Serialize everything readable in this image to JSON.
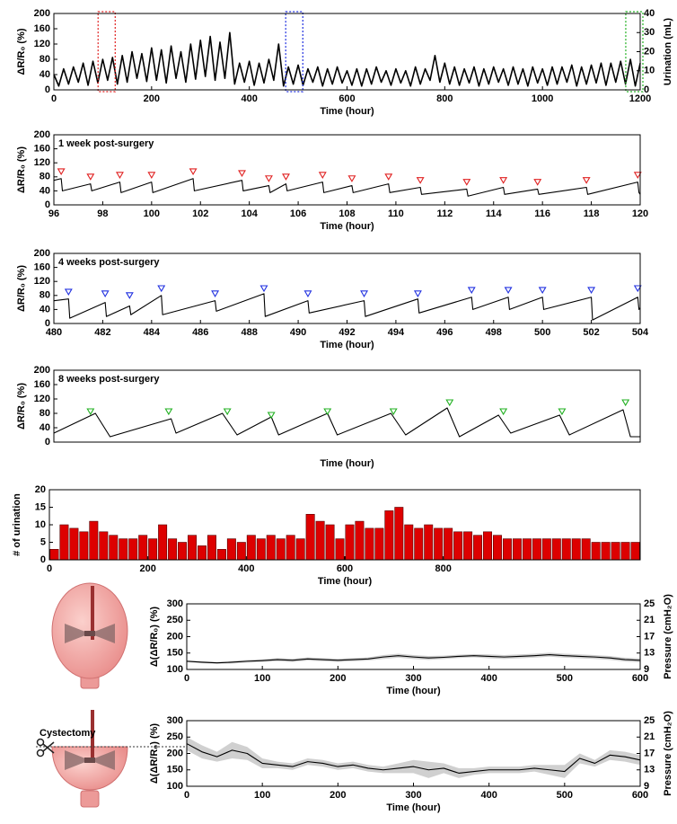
{
  "chart_data": [
    {
      "type": "line",
      "xlabel": "Time (hour)",
      "ylabel": "ΔR/R₀ (%)",
      "y2label": "Urination (mL)",
      "xlim": [
        0,
        1200
      ],
      "xticks": [
        0,
        200,
        400,
        600,
        800,
        1000,
        1200
      ],
      "ylim": [
        0,
        200
      ],
      "yticks": [
        0,
        40,
        80,
        120,
        160,
        200
      ],
      "y2lim": [
        0,
        40
      ],
      "y2ticks": [
        0,
        10,
        20,
        30,
        40
      ],
      "color": "#000000",
      "x": [
        0,
        10,
        20,
        30,
        40,
        50,
        60,
        70,
        80,
        90,
        100,
        110,
        120,
        130,
        140,
        150,
        160,
        170,
        180,
        190,
        200,
        210,
        220,
        230,
        240,
        250,
        260,
        270,
        280,
        290,
        300,
        310,
        320,
        330,
        340,
        350,
        360,
        370,
        380,
        390,
        400,
        410,
        420,
        430,
        440,
        450,
        460,
        470,
        480,
        490,
        500,
        510,
        520,
        530,
        540,
        550,
        560,
        570,
        580,
        590,
        600,
        610,
        620,
        630,
        640,
        650,
        660,
        670,
        680,
        690,
        700,
        710,
        720,
        730,
        740,
        750,
        760,
        770,
        780,
        790,
        800,
        810,
        820,
        830,
        840,
        850,
        860,
        870,
        880,
        890,
        900,
        910,
        920,
        930,
        940,
        950,
        960,
        970,
        980,
        990,
        1000,
        1010,
        1020,
        1030,
        1040,
        1050,
        1060,
        1070,
        1080,
        1090,
        1100,
        1110,
        1120,
        1130,
        1140,
        1150,
        1160,
        1170,
        1180,
        1190,
        1200
      ],
      "values": [
        40,
        10,
        55,
        15,
        60,
        20,
        70,
        12,
        75,
        18,
        80,
        25,
        85,
        15,
        90,
        20,
        100,
        30,
        95,
        22,
        110,
        25,
        105,
        18,
        115,
        30,
        100,
        20,
        120,
        28,
        130,
        35,
        140,
        25,
        125,
        30,
        150,
        15,
        70,
        20,
        75,
        12,
        70,
        18,
        80,
        25,
        120,
        10,
        60,
        15,
        65,
        12,
        55,
        20,
        60,
        10,
        55,
        15,
        60,
        18,
        50,
        12,
        55,
        10,
        55,
        15,
        60,
        20,
        50,
        12,
        55,
        18,
        50,
        10,
        60,
        15,
        55,
        25,
        90,
        20,
        70,
        15,
        60,
        12,
        55,
        18,
        60,
        10,
        55,
        15,
        60,
        20,
        55,
        12,
        60,
        15,
        55,
        10,
        60,
        18,
        55,
        12,
        60,
        15,
        60,
        20,
        65,
        10,
        60,
        15,
        65,
        18,
        70,
        12,
        70,
        20,
        75,
        15,
        80,
        10,
        70
      ],
      "highlights": [
        {
          "xlim": [
            96,
            120
          ],
          "color": "#e02020"
        },
        {
          "xlim": [
            480,
            504
          ],
          "color": "#2030e0"
        },
        {
          "xlim": [
            1176,
            1200
          ],
          "color": "#20b020"
        }
      ]
    },
    {
      "type": "line",
      "annotation": "1 week post-surgery",
      "xlabel": "Time (hour)",
      "ylabel": "ΔR/R₀ (%)",
      "xlim": [
        96,
        120
      ],
      "xticks": [
        96,
        98,
        100,
        102,
        104,
        106,
        108,
        110,
        112,
        114,
        116,
        118,
        120
      ],
      "ylim": [
        0,
        200
      ],
      "yticks": [
        0,
        40,
        80,
        120,
        160,
        200
      ],
      "color": "#000000",
      "x": [
        96,
        96.3,
        96.35,
        97.5,
        97.55,
        98.7,
        98.75,
        100,
        100.05,
        101.7,
        101.75,
        103.7,
        103.75,
        104.8,
        104.85,
        105.5,
        105.55,
        107,
        107.05,
        108.2,
        108.25,
        109.7,
        109.75,
        111,
        111.05,
        112.9,
        112.95,
        114.4,
        114.45,
        115.8,
        115.85,
        117.8,
        117.85,
        119.9,
        119.95,
        120
      ],
      "values": [
        70,
        75,
        40,
        60,
        40,
        65,
        35,
        65,
        35,
        75,
        40,
        70,
        40,
        55,
        35,
        60,
        40,
        65,
        35,
        55,
        35,
        60,
        35,
        50,
        30,
        45,
        25,
        50,
        30,
        45,
        30,
        50,
        30,
        65,
        35,
        30
      ],
      "events": {
        "color": "#e02020",
        "x": [
          96.3,
          97.5,
          98.7,
          100,
          101.7,
          103.7,
          104.8,
          105.5,
          107,
          108.2,
          109.7,
          111,
          112.9,
          114.4,
          115.8,
          117.8,
          119.9
        ],
        "values": [
          95,
          80,
          85,
          85,
          95,
          90,
          75,
          80,
          85,
          75,
          80,
          70,
          65,
          70,
          65,
          70,
          85
        ]
      }
    },
    {
      "type": "line",
      "annotation": "4 weeks post-surgery",
      "xlabel": "Time (hour)",
      "ylabel": "ΔR/R₀ (%)",
      "xlim": [
        480,
        504
      ],
      "xticks": [
        480,
        482,
        484,
        486,
        488,
        490,
        492,
        494,
        496,
        498,
        500,
        502,
        504
      ],
      "ylim": [
        0,
        200
      ],
      "yticks": [
        0,
        40,
        80,
        120,
        160,
        200
      ],
      "color": "#000000",
      "x": [
        480,
        480.6,
        480.65,
        482.1,
        482.15,
        483.1,
        483.15,
        484.4,
        484.45,
        486.6,
        486.65,
        488.6,
        488.65,
        490.4,
        490.45,
        492.7,
        492.75,
        494.9,
        494.95,
        497.1,
        497.15,
        498.6,
        498.65,
        500,
        500.05,
        502,
        502.05,
        503.9,
        503.95,
        504
      ],
      "values": [
        65,
        70,
        15,
        60,
        20,
        50,
        25,
        80,
        25,
        65,
        35,
        85,
        20,
        65,
        30,
        65,
        20,
        70,
        30,
        75,
        40,
        75,
        40,
        75,
        40,
        75,
        10,
        75,
        40,
        45
      ],
      "events": {
        "color": "#2030e0",
        "x": [
          480.6,
          482.1,
          483.1,
          484.4,
          486.6,
          488.6,
          490.4,
          492.7,
          494.9,
          497.1,
          498.6,
          500,
          502,
          503.9
        ],
        "values": [
          90,
          85,
          80,
          100,
          85,
          100,
          85,
          85,
          85,
          95,
          95,
          95,
          95,
          100
        ]
      }
    },
    {
      "type": "line",
      "annotation": "8 weeks post-surgery",
      "xlabel": "Time (hour)",
      "ylabel": "ΔR/R₀ (%)",
      "xlim": [
        1176,
        1200
      ],
      "ylim": [
        0,
        200
      ],
      "yticks": [
        0,
        40,
        80,
        120,
        160,
        200
      ],
      "color": "#000000",
      "x": [
        1176,
        1177.7,
        1178.3,
        1180.8,
        1181,
        1182.9,
        1183.5,
        1184.9,
        1185.2,
        1187.2,
        1187.6,
        1189.8,
        1190.4,
        1192.1,
        1192.6,
        1194.2,
        1194.7,
        1196.7,
        1197.1,
        1199.3,
        1199.6,
        1200
      ],
      "values": [
        25,
        80,
        15,
        65,
        25,
        80,
        20,
        70,
        20,
        80,
        20,
        80,
        20,
        95,
        15,
        75,
        25,
        75,
        20,
        90,
        15,
        15
      ],
      "events": {
        "color": "#20b020",
        "x": [
          1177.5,
          1180.7,
          1183.1,
          1184.9,
          1187.2,
          1189.9,
          1192.2,
          1194.4,
          1196.8,
          1199.4
        ],
        "values": [
          85,
          85,
          85,
          75,
          85,
          85,
          110,
          85,
          85,
          110
        ]
      }
    },
    {
      "type": "histogram",
      "xlabel": "Time (hour)",
      "ylabel": "# of urination",
      "xlim": [
        0,
        1200
      ],
      "xticks": [
        0,
        200,
        400,
        600,
        800
      ],
      "ylim": [
        0,
        20
      ],
      "yticks": [
        0,
        5,
        10,
        15,
        20
      ],
      "color": "#dd0000",
      "bins": [
        0,
        20,
        40,
        60,
        80,
        100,
        120,
        140,
        160,
        180,
        200,
        220,
        240,
        260,
        280,
        300,
        320,
        340,
        360,
        380,
        400,
        420,
        440,
        460,
        480,
        500,
        520,
        540,
        560,
        580,
        600,
        620,
        640,
        660,
        680,
        700,
        720,
        740,
        760,
        780,
        800,
        820,
        840,
        860,
        880,
        900,
        920,
        940,
        960,
        980,
        1000,
        1020,
        1040,
        1060,
        1080,
        1100,
        1120,
        1140,
        1160,
        1180,
        1200
      ],
      "values": [
        3,
        10,
        9,
        8,
        11,
        8,
        7,
        6,
        6,
        7,
        6,
        10,
        6,
        5,
        7,
        4,
        7,
        3,
        6,
        5,
        7,
        6,
        7,
        6,
        7,
        6,
        13,
        11,
        10,
        6,
        10,
        11,
        9,
        9,
        14,
        15,
        10,
        9,
        10,
        9,
        9,
        8,
        8,
        7,
        8,
        7,
        6,
        6,
        6,
        6,
        6,
        6,
        6,
        6,
        6,
        5,
        5,
        5,
        5,
        5
      ]
    },
    {
      "type": "band",
      "xlabel": "Time (hour)",
      "ylabel": "Δ(ΔR/R₀) (%)",
      "y2label": "Pressure (cmH₂O)",
      "xlim": [
        0,
        600
      ],
      "xticks": [
        0,
        100,
        200,
        300,
        400,
        500,
        600
      ],
      "ylim": [
        100,
        300
      ],
      "yticks": [
        100,
        150,
        200,
        250,
        300
      ],
      "y2lim": [
        9,
        25
      ],
      "y2ticks": [
        9,
        13,
        17,
        21,
        25
      ],
      "color": "#000000",
      "band_color": "#d0d0d0",
      "x": [
        0,
        20,
        40,
        60,
        80,
        100,
        120,
        140,
        160,
        180,
        200,
        220,
        240,
        260,
        280,
        300,
        320,
        340,
        360,
        380,
        400,
        420,
        440,
        460,
        480,
        500,
        520,
        540,
        560,
        580,
        600
      ],
      "values": [
        125,
        122,
        120,
        122,
        125,
        127,
        130,
        128,
        132,
        130,
        128,
        130,
        132,
        138,
        142,
        138,
        135,
        137,
        140,
        142,
        140,
        138,
        140,
        142,
        145,
        142,
        140,
        138,
        135,
        130,
        128
      ],
      "errors": [
        3,
        3,
        3,
        4,
        4,
        4,
        5,
        5,
        5,
        5,
        5,
        5,
        5,
        6,
        6,
        6,
        6,
        5,
        5,
        5,
        6,
        6,
        6,
        6,
        6,
        6,
        6,
        6,
        6,
        6,
        6
      ]
    },
    {
      "type": "band",
      "annotation": "Cystectomy",
      "xlabel": "Time (hour)",
      "ylabel": "Δ(ΔR/R₀) (%)",
      "y2label": "Pressure (cmH₂O)",
      "xlim": [
        0,
        600
      ],
      "xticks": [
        0,
        100,
        200,
        300,
        400,
        500,
        600
      ],
      "ylim": [
        100,
        300
      ],
      "yticks": [
        100,
        150,
        200,
        250,
        300
      ],
      "y2lim": [
        9,
        25
      ],
      "y2ticks": [
        9,
        13,
        17,
        21,
        25
      ],
      "color": "#000000",
      "band_color": "#d0d0d0",
      "x": [
        0,
        20,
        40,
        60,
        80,
        100,
        120,
        140,
        160,
        180,
        200,
        220,
        240,
        260,
        280,
        300,
        320,
        340,
        360,
        380,
        400,
        420,
        440,
        460,
        480,
        500,
        520,
        540,
        560,
        580,
        600
      ],
      "values": [
        230,
        205,
        190,
        210,
        200,
        170,
        165,
        160,
        175,
        170,
        160,
        165,
        155,
        150,
        155,
        160,
        150,
        155,
        140,
        145,
        150,
        150,
        150,
        155,
        150,
        145,
        185,
        170,
        195,
        190,
        180
      ],
      "errors": [
        20,
        20,
        15,
        25,
        20,
        15,
        10,
        10,
        10,
        10,
        10,
        10,
        10,
        10,
        15,
        20,
        25,
        15,
        15,
        10,
        10,
        10,
        10,
        10,
        15,
        20,
        15,
        10,
        15,
        15,
        15
      ]
    }
  ]
}
